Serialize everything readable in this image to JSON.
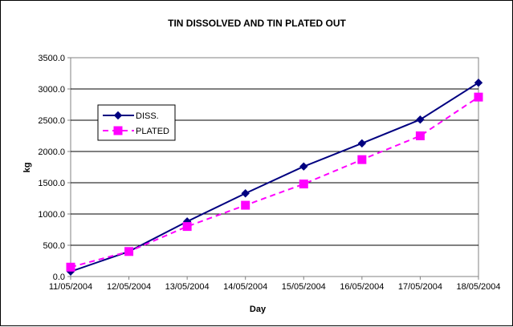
{
  "chart_data": {
    "type": "line",
    "title": "TIN DISSOLVED AND TIN PLATED OUT",
    "xlabel": "Day",
    "ylabel": "kg",
    "categories": [
      "11/05/2004",
      "12/05/2004",
      "13/05/2004",
      "14/05/2004",
      "15/05/2004",
      "16/05/2004",
      "17/05/2004",
      "18/05/2004"
    ],
    "ylim": [
      0,
      3500
    ],
    "yticks": [
      "0.0",
      "500.0",
      "1000.0",
      "1500.0",
      "2000.0",
      "2500.0",
      "3000.0",
      "3500.0"
    ],
    "grid": true,
    "legend_position": "left",
    "series": [
      {
        "name": "DISS.",
        "values": [
          80,
          400,
          880,
          1330,
          1760,
          2130,
          2510,
          3100
        ],
        "color": "#000080",
        "marker": "diamond",
        "dash": "solid"
      },
      {
        "name": "PLATED",
        "values": [
          150,
          400,
          800,
          1140,
          1480,
          1870,
          2250,
          2870
        ],
        "color": "#FF00FF",
        "marker": "square",
        "dash": "dashed"
      }
    ]
  }
}
